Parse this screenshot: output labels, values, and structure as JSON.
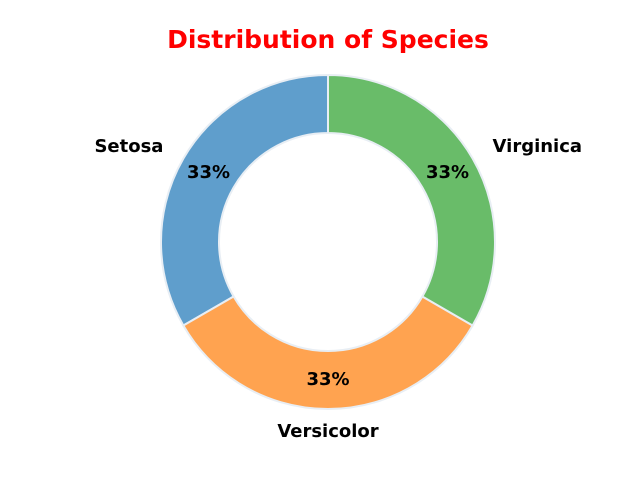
{
  "chart_data": {
    "type": "pie",
    "title": "Distribution of Species",
    "title_color": "#ff0000",
    "donut": true,
    "categories": [
      "Setosa",
      "Versicolor",
      "Virginica"
    ],
    "values": [
      33.3,
      33.3,
      33.3
    ],
    "percent_labels": [
      "33%",
      "33%",
      "33%"
    ],
    "colors": [
      "#5f9ecc",
      "#ffa350",
      "#69bc69"
    ],
    "edge_color": "#e8eef4"
  }
}
